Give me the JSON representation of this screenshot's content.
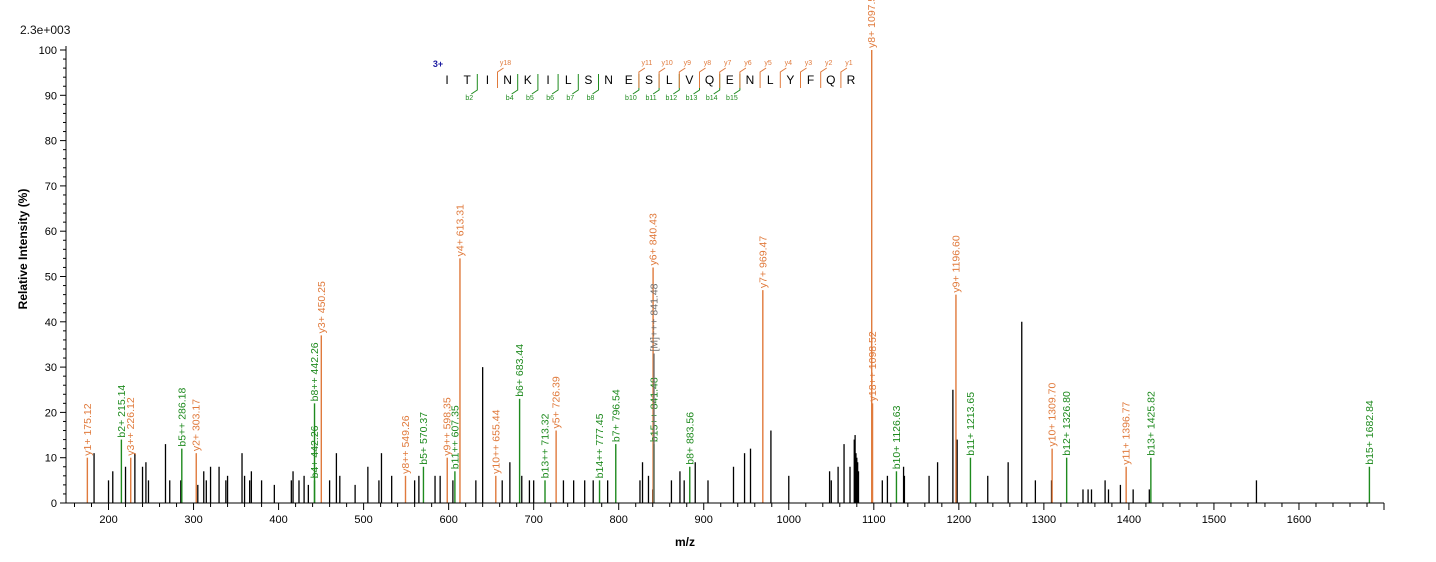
{
  "chart_data": {
    "type": "mass-spectrum",
    "scale_label": "2.3e+003",
    "ylabel": "Relative   Intensity (%)",
    "xlabel": "m/z",
    "xlim": [
      150,
      1700
    ],
    "ylim": [
      0,
      100
    ],
    "x_ticks": [
      200,
      300,
      400,
      500,
      600,
      700,
      800,
      900,
      1000,
      1100,
      1200,
      1300,
      1400,
      1500,
      1600
    ],
    "y_ticks": [
      0,
      10,
      20,
      30,
      40,
      50,
      60,
      70,
      80,
      90,
      100
    ],
    "colors": {
      "b_ion": "#1e8a1e",
      "y_ion": "#e07a3c",
      "precursor": "#707070",
      "unassigned": "#000000",
      "axis": "#000000",
      "charge_label": "#1a1aa0"
    },
    "annotated_peaks": [
      {
        "mz": 175.12,
        "intensity": 10,
        "series": "y",
        "label": "y1+ 175.12"
      },
      {
        "mz": 215.14,
        "intensity": 14,
        "series": "b",
        "label": "b2+ 215.14"
      },
      {
        "mz": 226.12,
        "intensity": 10,
        "series": "y",
        "label": "y3++ 226.12"
      },
      {
        "mz": 286.18,
        "intensity": 12,
        "series": "b",
        "label": "b5++ 286.18"
      },
      {
        "mz": 303.17,
        "intensity": 11,
        "series": "y",
        "label": "y2+ 303.17"
      },
      {
        "mz": 442.26,
        "intensity": 5,
        "series": "b",
        "label": "b4+ 442.26"
      },
      {
        "mz": 442.26,
        "intensity": 22,
        "series": "b",
        "label": "b8++ 442.26"
      },
      {
        "mz": 450.25,
        "intensity": 37,
        "series": "y",
        "label": "y3+ 450.25"
      },
      {
        "mz": 549.26,
        "intensity": 6,
        "series": "y",
        "label": "y8++ 549.26"
      },
      {
        "mz": 570.37,
        "intensity": 8,
        "series": "b",
        "label": "b5+ 570.37"
      },
      {
        "mz": 598.35,
        "intensity": 10,
        "series": "y",
        "label": "y9++ 598.35"
      },
      {
        "mz": 607.35,
        "intensity": 7,
        "series": "b",
        "label": "b11++ 607.35"
      },
      {
        "mz": 613.31,
        "intensity": 54,
        "series": "y",
        "label": "y4+ 613.31"
      },
      {
        "mz": 655.44,
        "intensity": 6,
        "series": "y",
        "label": "y10++ 655.44"
      },
      {
        "mz": 683.44,
        "intensity": 23,
        "series": "b",
        "label": "b6+ 683.44"
      },
      {
        "mz": 713.32,
        "intensity": 5,
        "series": "b",
        "label": "b13++ 713.32"
      },
      {
        "mz": 726.39,
        "intensity": 16,
        "series": "y",
        "label": "y5+ 726.39"
      },
      {
        "mz": 777.45,
        "intensity": 5,
        "series": "b",
        "label": "b14++ 777.45"
      },
      {
        "mz": 796.54,
        "intensity": 13,
        "series": "b",
        "label": "b7+ 796.54"
      },
      {
        "mz": 840.43,
        "intensity": 52,
        "series": "y",
        "label": "y6+ 840.43"
      },
      {
        "mz": 841.48,
        "intensity": 13,
        "series": "b",
        "label": "b15++ 841.48"
      },
      {
        "mz": 841.48,
        "intensity": 33,
        "series": "precursor",
        "label": "[M]+++ 841.48"
      },
      {
        "mz": 883.56,
        "intensity": 8,
        "series": "b",
        "label": "b8+ 883.56"
      },
      {
        "mz": 969.47,
        "intensity": 47,
        "series": "y",
        "label": "y7+ 969.47"
      },
      {
        "mz": 1097.54,
        "intensity": 100,
        "series": "y",
        "label": "y8+ 1097.54"
      },
      {
        "mz": 1098.52,
        "intensity": 22,
        "series": "y",
        "label": "y18++ 1098.52"
      },
      {
        "mz": 1126.63,
        "intensity": 7,
        "series": "b",
        "label": "b10+ 1126.63"
      },
      {
        "mz": 1196.6,
        "intensity": 46,
        "series": "y",
        "label": "y9+ 1196.60"
      },
      {
        "mz": 1213.65,
        "intensity": 10,
        "series": "b",
        "label": "b11+ 1213.65"
      },
      {
        "mz": 1309.7,
        "intensity": 12,
        "series": "y",
        "label": "y10+ 1309.70"
      },
      {
        "mz": 1326.8,
        "intensity": 10,
        "series": "b",
        "label": "b12+ 1326.80"
      },
      {
        "mz": 1396.77,
        "intensity": 8,
        "series": "y",
        "label": "y11+ 1396.77"
      },
      {
        "mz": 1425.82,
        "intensity": 10,
        "series": "b",
        "label": "b13+ 1425.82"
      },
      {
        "mz": 1682.84,
        "intensity": 8,
        "series": "b",
        "label": "b15+ 1682.84"
      }
    ],
    "unassigned_peaks": [
      [
        183,
        11
      ],
      [
        200,
        5
      ],
      [
        205,
        7
      ],
      [
        220,
        8
      ],
      [
        231,
        11
      ],
      [
        240,
        8
      ],
      [
        244,
        9
      ],
      [
        247,
        5
      ],
      [
        267,
        13
      ],
      [
        272,
        5
      ],
      [
        285,
        5
      ],
      [
        305,
        4
      ],
      [
        312,
        7
      ],
      [
        315,
        5
      ],
      [
        320,
        8
      ],
      [
        330,
        8
      ],
      [
        338,
        5
      ],
      [
        340,
        6
      ],
      [
        357,
        11
      ],
      [
        360,
        6
      ],
      [
        366,
        5
      ],
      [
        368,
        7
      ],
      [
        380,
        5
      ],
      [
        395,
        4
      ],
      [
        415,
        5
      ],
      [
        417,
        7
      ],
      [
        424,
        5
      ],
      [
        430,
        6
      ],
      [
        435,
        4
      ],
      [
        460,
        5
      ],
      [
        468,
        11
      ],
      [
        472,
        6
      ],
      [
        490,
        4
      ],
      [
        505,
        8
      ],
      [
        518,
        5
      ],
      [
        521,
        11
      ],
      [
        533,
        6
      ],
      [
        560,
        5
      ],
      [
        565,
        6
      ],
      [
        584,
        6
      ],
      [
        590,
        6
      ],
      [
        605,
        5
      ],
      [
        632,
        5
      ],
      [
        640,
        30
      ],
      [
        663,
        5
      ],
      [
        672,
        9
      ],
      [
        686,
        6
      ],
      [
        695,
        5
      ],
      [
        700,
        5
      ],
      [
        735,
        5
      ],
      [
        747,
        5
      ],
      [
        760,
        5
      ],
      [
        770,
        5
      ],
      [
        787,
        5
      ],
      [
        825,
        5
      ],
      [
        828,
        9
      ],
      [
        835,
        6
      ],
      [
        840,
        3
      ],
      [
        862,
        5
      ],
      [
        872,
        7
      ],
      [
        877,
        5
      ],
      [
        890,
        9
      ],
      [
        905,
        5
      ],
      [
        935,
        8
      ],
      [
        948,
        11
      ],
      [
        955,
        12
      ],
      [
        979,
        16
      ],
      [
        1000,
        6
      ],
      [
        1048,
        7
      ],
      [
        1050,
        5
      ],
      [
        1058,
        8
      ],
      [
        1065,
        13
      ],
      [
        1072,
        8
      ],
      [
        1077,
        14
      ],
      [
        1078,
        15
      ],
      [
        1079,
        11
      ],
      [
        1080,
        10
      ],
      [
        1081,
        9
      ],
      [
        1082,
        7
      ],
      [
        1110,
        5
      ],
      [
        1116,
        6
      ],
      [
        1135,
        8
      ],
      [
        1136,
        6
      ],
      [
        1165,
        6
      ],
      [
        1175,
        9
      ],
      [
        1193,
        25
      ],
      [
        1198,
        14
      ],
      [
        1234,
        6
      ],
      [
        1258,
        9
      ],
      [
        1274,
        40
      ],
      [
        1290,
        5
      ],
      [
        1309,
        5
      ],
      [
        1346,
        3
      ],
      [
        1352,
        3
      ],
      [
        1356,
        3
      ],
      [
        1372,
        5
      ],
      [
        1376,
        3
      ],
      [
        1390,
        4
      ],
      [
        1405,
        3
      ],
      [
        1424,
        3
      ],
      [
        1550,
        5
      ]
    ],
    "peptide": {
      "charge": "3+",
      "residues": [
        "I",
        "T",
        "I",
        "N",
        "K",
        "I",
        "L",
        "S",
        "N",
        "E",
        "S",
        "L",
        "V",
        "Q",
        "E",
        "N",
        "L",
        "Y",
        "F",
        "Q",
        "R"
      ],
      "b_marks": [
        {
          "after": 2,
          "label": "b2"
        },
        {
          "after": 4,
          "label": "b4"
        },
        {
          "after": 5,
          "label": "b5"
        },
        {
          "after": 6,
          "label": "b6"
        },
        {
          "after": 7,
          "label": "b7"
        },
        {
          "after": 8,
          "label": "b8"
        },
        {
          "after": 10,
          "label": "b10"
        },
        {
          "after": 11,
          "label": "b11"
        },
        {
          "after": 12,
          "label": "b12"
        },
        {
          "after": 13,
          "label": "b13"
        },
        {
          "after": 14,
          "label": "b14"
        },
        {
          "after": 15,
          "label": "b15"
        }
      ],
      "y_marks": [
        {
          "after": 3,
          "label": "y18"
        },
        {
          "after": 10,
          "label": "y11"
        },
        {
          "after": 11,
          "label": "y10"
        },
        {
          "after": 12,
          "label": "y9"
        },
        {
          "after": 13,
          "label": "y8"
        },
        {
          "after": 14,
          "label": "y7"
        },
        {
          "after": 15,
          "label": "y6"
        },
        {
          "after": 16,
          "label": "y5"
        },
        {
          "after": 17,
          "label": "y4"
        },
        {
          "after": 18,
          "label": "y3"
        },
        {
          "after": 19,
          "label": "y2"
        },
        {
          "after": 20,
          "label": "y1"
        }
      ]
    }
  }
}
